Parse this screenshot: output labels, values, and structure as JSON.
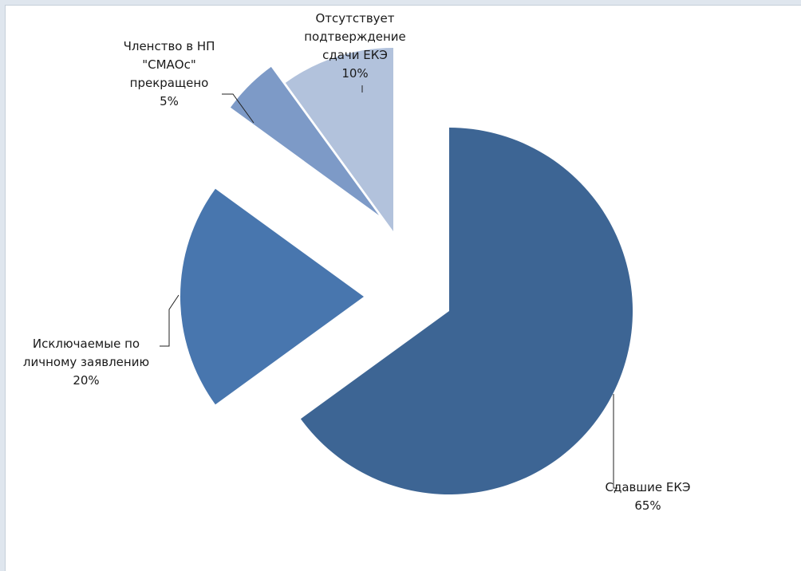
{
  "chart_data": {
    "type": "pie",
    "exploded": true,
    "slices": [
      {
        "label_lines": [
          "Сдавшие ЕКЭ"
        ],
        "pct_text": "65%",
        "value": 65,
        "color": "#3d6594"
      },
      {
        "label_lines": [
          "Исключаемые по",
          "личному заявлению"
        ],
        "pct_text": "20%",
        "value": 20,
        "color": "#4876ae"
      },
      {
        "label_lines": [
          "Членство в НП",
          "\"СМАОс\"",
          "прекращено"
        ],
        "pct_text": "5%",
        "value": 5,
        "color": "#7d9ac7"
      },
      {
        "label_lines": [
          "Отсутствует",
          "подтверждение",
          "сдачи ЕКЭ"
        ],
        "pct_text": "10%",
        "value": 10,
        "color": "#b2c2dc"
      }
    ]
  }
}
